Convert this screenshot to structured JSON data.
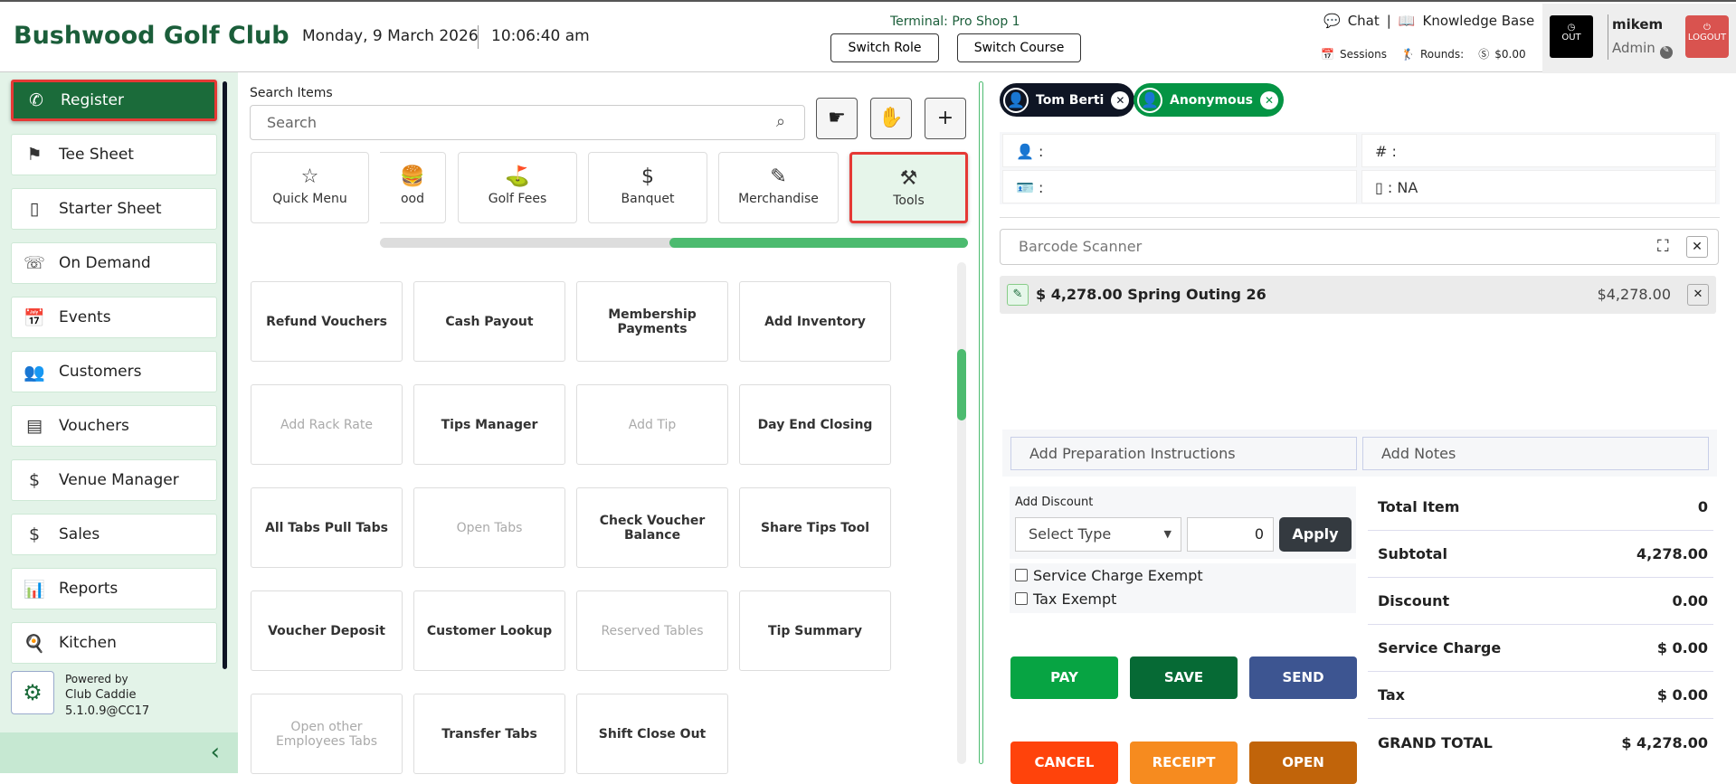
{
  "header": {
    "title": "Bushwood Golf Club",
    "date": "Monday, 9 March 2026",
    "time": "10:06:40 am",
    "terminal": "Terminal: Pro Shop 1",
    "switch_role": "Switch Role",
    "switch_course": "Switch Course",
    "chat": "Chat",
    "divider": "|",
    "knowledge_base": "Knowledge Base",
    "sessions": "Sessions",
    "rounds": "Rounds:",
    "balance": "$0.00",
    "out": "OUT",
    "username": "mikem",
    "role": "Admin",
    "logout": "LOGOUT"
  },
  "sidebar": {
    "items": [
      {
        "label": "Register",
        "icon": "barcode-scanner-icon",
        "active": true
      },
      {
        "label": "Tee Sheet",
        "icon": "calendar-flag-icon"
      },
      {
        "label": "Starter Sheet",
        "icon": "phone-icon"
      },
      {
        "label": "On Demand",
        "icon": "on-demand-icon"
      },
      {
        "label": "Events",
        "icon": "calendar-icon"
      },
      {
        "label": "Customers",
        "icon": "users-icon"
      },
      {
        "label": "Vouchers",
        "icon": "voucher-icon"
      },
      {
        "label": "Venue Manager",
        "icon": "venue-icon"
      },
      {
        "label": "Sales",
        "icon": "dollar-doc-icon"
      },
      {
        "label": "Reports",
        "icon": "chart-icon"
      },
      {
        "label": "Kitchen",
        "icon": "kitchen-icon"
      }
    ],
    "powered_by": "Powered by",
    "brand": "Club Caddie",
    "version": "5.1.0.9@CC17"
  },
  "search": {
    "label": "Search Items",
    "placeholder": "Search"
  },
  "categories": [
    {
      "label": "Quick Menu",
      "icon": "☆"
    },
    {
      "label": "ood",
      "icon": "🍔"
    },
    {
      "label": "Golf Fees",
      "icon": "⛳"
    },
    {
      "label": "Banquet",
      "icon": "$"
    },
    {
      "label": "Merchandise",
      "icon": "✎"
    },
    {
      "label": "Tools",
      "icon": "⚒",
      "selected": true
    }
  ],
  "tools": [
    {
      "label": "Refund Vouchers",
      "enabled": true
    },
    {
      "label": "Cash Payout",
      "enabled": true
    },
    {
      "label": "Membership Payments",
      "enabled": true
    },
    {
      "label": "Add Inventory",
      "enabled": true
    },
    {
      "label": "Add Rack Rate",
      "enabled": false
    },
    {
      "label": "Tips Manager",
      "enabled": true
    },
    {
      "label": "Add Tip",
      "enabled": false
    },
    {
      "label": "Day End Closing",
      "enabled": true
    },
    {
      "label": "All Tabs Pull Tabs",
      "enabled": true
    },
    {
      "label": "Open Tabs",
      "enabled": false
    },
    {
      "label": "Check Voucher Balance",
      "enabled": true
    },
    {
      "label": "Share Tips Tool",
      "enabled": true
    },
    {
      "label": "Voucher Deposit",
      "enabled": true
    },
    {
      "label": "Customer Lookup",
      "enabled": true
    },
    {
      "label": "Reserved Tables",
      "enabled": false
    },
    {
      "label": "Tip Summary",
      "enabled": true
    },
    {
      "label": "Open other Employees Tabs",
      "enabled": false
    },
    {
      "label": "Transfer Tabs",
      "enabled": true
    },
    {
      "label": "Shift Close Out",
      "enabled": true
    }
  ],
  "customers": [
    {
      "name": "Tom Berti",
      "color": "#0f1524"
    },
    {
      "name": "Anonymous",
      "color": "#049444"
    }
  ],
  "info": {
    "name": ":",
    "number": "# :",
    "card": ":",
    "phone": ": NA"
  },
  "barcode": {
    "placeholder": "Barcode Scanner"
  },
  "line_items": [
    {
      "label": "$ 4,278.00 Spring Outing 26",
      "amount": "$4,278.00"
    }
  ],
  "notes": {
    "prep_placeholder": "Add Preparation Instructions",
    "notes_placeholder": "Add Notes"
  },
  "discount": {
    "label": "Add Discount",
    "type": "Select Type",
    "value": "0",
    "apply": "Apply",
    "service_charge_exempt": "Service Charge Exempt",
    "tax_exempt": "Tax Exempt"
  },
  "actions": [
    {
      "label": "PAY",
      "color": "#07a443"
    },
    {
      "label": "SAVE",
      "color": "#066a35"
    },
    {
      "label": "SEND",
      "color": "#3d5591"
    },
    {
      "label": "CANCEL",
      "color": "#ff430b"
    },
    {
      "label": "RECEIPT",
      "color": "#f68b1f"
    },
    {
      "label": "OPEN",
      "color": "#c1640a"
    }
  ],
  "totals": [
    {
      "label": "Total Item",
      "value": "0"
    },
    {
      "label": "Subtotal",
      "value": "4,278.00"
    },
    {
      "label": "Discount",
      "value": "0.00"
    },
    {
      "label": "Service Charge",
      "value": "$ 0.00"
    },
    {
      "label": "Tax",
      "value": "$ 0.00"
    },
    {
      "label": "GRAND TOTAL",
      "value": "$ 4,278.00"
    }
  ]
}
